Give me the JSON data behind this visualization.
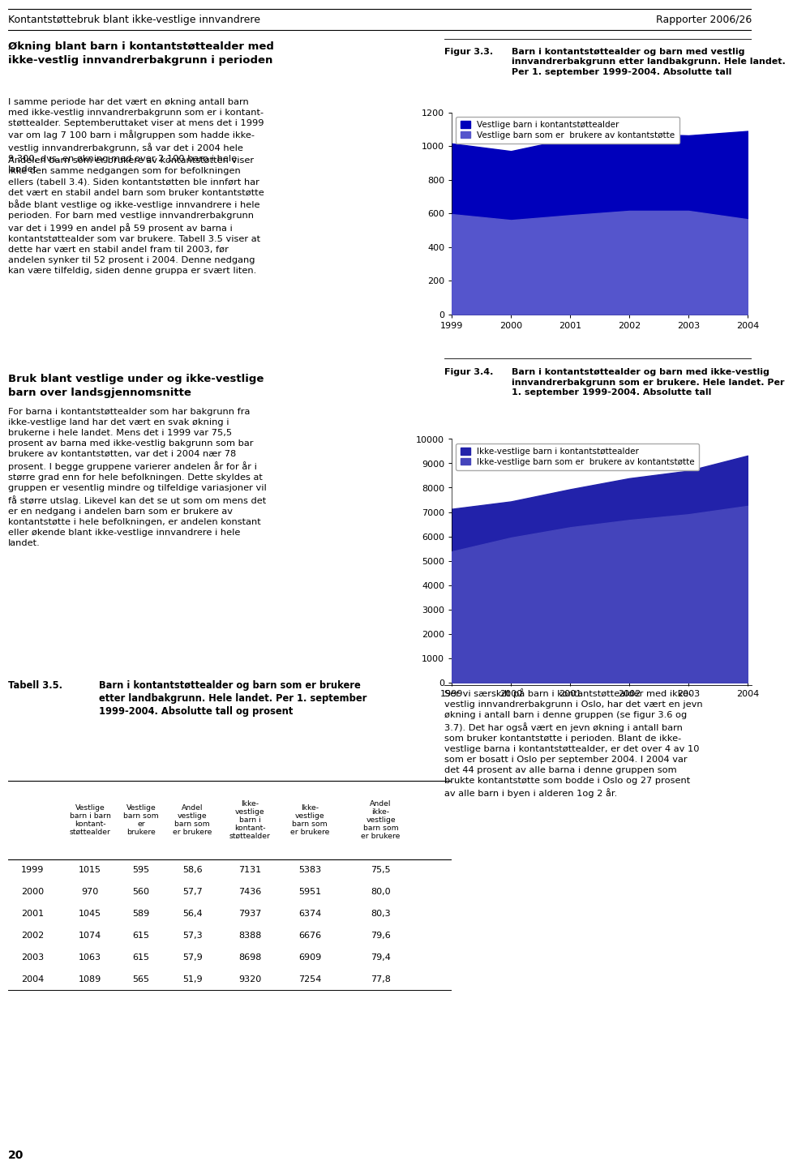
{
  "years": [
    1999,
    2000,
    2001,
    2002,
    2003,
    2004
  ],
  "vestlig_total": [
    1015,
    970,
    1045,
    1074,
    1063,
    1089
  ],
  "vestlig_users": [
    595,
    560,
    589,
    615,
    615,
    565
  ],
  "ikke_vestlig_total": [
    7131,
    7436,
    7937,
    8388,
    8698,
    9320
  ],
  "ikke_vestlig_users": [
    5383,
    5951,
    6374,
    6676,
    6909,
    7254
  ],
  "fig1_label": "Figur 3.3.",
  "fig1_title": "Barn i kontantstøttealder og barn med vestlig\ninnvandrerbakgrunn etter landbakgrunn. Hele landet.\nPer 1. september 1999-2004. Absolutte tall",
  "fig2_label": "Figur 3.4.",
  "fig2_title": "Barn i kontantstøttealder og barn med ikke-vestlig\ninnvandrerbakgrunn som er brukere. Hele landet. Per\n1. september 1999-2004. Absolutte tall",
  "fig1_legend1": "Vestlige barn i kontantstøttealder",
  "fig1_legend2": "Vestlige barn som er  brukere av kontantstøtte",
  "fig2_legend1": "Ikke-vestlige barn i kontantstøttealder",
  "fig2_legend2": "Ikke-vestlige barn som er  brukere av kontantstøtte",
  "color_dark1": "#0000BB",
  "color_light1": "#5555CC",
  "color_dark2": "#2222AA",
  "color_light2": "#4444BB",
  "fig1_ylim": [
    0,
    1200
  ],
  "fig1_yticks": [
    0,
    200,
    400,
    600,
    800,
    1000,
    1200
  ],
  "fig2_ylim": [
    0,
    10000
  ],
  "fig2_yticks": [
    0,
    1000,
    2000,
    3000,
    4000,
    5000,
    6000,
    7000,
    8000,
    9000,
    10000
  ],
  "page_title": "Kontantstøttebruk blant ikke-vestlige innvandrere",
  "page_subtitle": "Rapporter 2006/26",
  "table_title_bold": "Tabell 3.5.",
  "table_title_rest": "Barn i kontantstøttealder og barn som er brukere\netter landbakgrunn. Hele landet. Per 1. september\n1999-2004. Absolutte tall og prosent",
  "table_years": [
    1999,
    2000,
    2001,
    2002,
    2003,
    2004
  ],
  "table_v_total": [
    1015,
    970,
    1045,
    1074,
    1063,
    1089
  ],
  "table_v_users": [
    595,
    560,
    589,
    615,
    615,
    565
  ],
  "table_v_pct": [
    "58,6",
    "57,7",
    "56,4",
    "57,3",
    "57,9",
    "51,9"
  ],
  "table_iv_total": [
    7131,
    7436,
    7937,
    8388,
    8698,
    9320
  ],
  "table_iv_users": [
    5383,
    5951,
    6374,
    6676,
    6909,
    7254
  ],
  "table_iv_pct": [
    "75,5",
    "80,0",
    "80,3",
    "79,6",
    "79,4",
    "77,8"
  ],
  "col_headers": [
    "Vestlige\nbarn i barn\nkontant-\nstøttealder",
    "Vestlige\nbarn som\ner\nbrukere",
    "Andel\nvestlige\nbarn som\ner brukere",
    "Ikke-\nvestlige\nbarn i\nkontant-\nstøttealder",
    "Ikke-\nvestlige\nbarn som\ner brukere",
    "Andel\nikke-\nvestlige\nbarn som\ner brukere"
  ],
  "left_title1": "Økning blant barn i kontantstøttealder med\nikke-vestlig innvandrerbakgrunn i perioden",
  "left_body1": "I samme periode har det vært en økning antall barn\nmed ikke-vestlig innvandrerbakgrunn som er i kontant-\nstøttealder. Septemberuttaket viser at mens det i 1999\nvar om lag 7 100 barn i målgruppen som hadde ikke-\nvestlig innvandrerbakgrunn, så var det i 2004 hele\n9 300, dvs. en økning med over 2 100 barn i hele\nlandet",
  "left_body2": "Andelen barn som er brukere av kontantstøtten viser\nikke den samme nedgangen som for befolkningen\nellers (tabell 3.4). Siden kontantstøtten ble innført har\ndet vært en stabil andel barn som bruker kontantstøtte\nbåde blant vestlige og ikke-vestlige innvandrere i hele\nperioden. For barn med vestlige innvandrerbakgrunn\nvar det i 1999 en andel på 59 prosent av barna i\nkontantstøttealder som var brukere. Tabell 3.5 viser at\ndette har vært en stabil andel fram til 2003, før\nandelen synker til 52 prosent i 2004. Denne nedgang\nkan være tilfeldig, siden denne gruppa er svært liten.",
  "left_title2": "Bruk blant vestlige under og ikke-vestlige\nbarn over landsgjennomsnitte",
  "left_body3": "For barna i kontantstøttealder som har bakgrunn fra\nikke-vestlige land har det vært en svak økning i\nbrukerne i hele landet. Mens det i 1999 var 75,5\nprosent av barna med ikke-vestlig bakgrunn som bar\nbrukere av kontantstøtten, var det i 2004 nær 78\nprosent. I begge gruppene varierer andelen år for år i\nstørre grad enn for hele befolkningen. Dette skyldes at\ngruppen er vesentlig mindre og tilfeldige variasjoner vil\nfå større utslag. Likevel kan det se ut som om mens det\ner en nedgang i andelen barn som er brukere av\nkontantstøtte i hele befolkningen, er andelen konstant\neller økende blant ikke-vestlige innvandrere i hele\nlandet.",
  "right_body_bottom": "Ser vi særskilt på barn i kontantstøttealder med ikke-\nvestlig innvandrerbakgrunn i Oslo, har det vært en jevn\nøkning i antall barn i denne gruppen (se figur 3.6 og\n3.7). Det har også vært en jevn økning i antall barn\nsom bruker kontantstøtte i perioden. Blant de ikke-\nvestlige barna i kontantstøttealder, er det over 4 av 10\nsom er bosatt i Oslo per september 2004. I 2004 var\ndet 44 prosent av alle barna i denne gruppen som\nbrukte kontantstøtte som bodde i Oslo og 27 prosent\nav alle barn i byen i alderen 1og 2 år.",
  "page_number": "20"
}
